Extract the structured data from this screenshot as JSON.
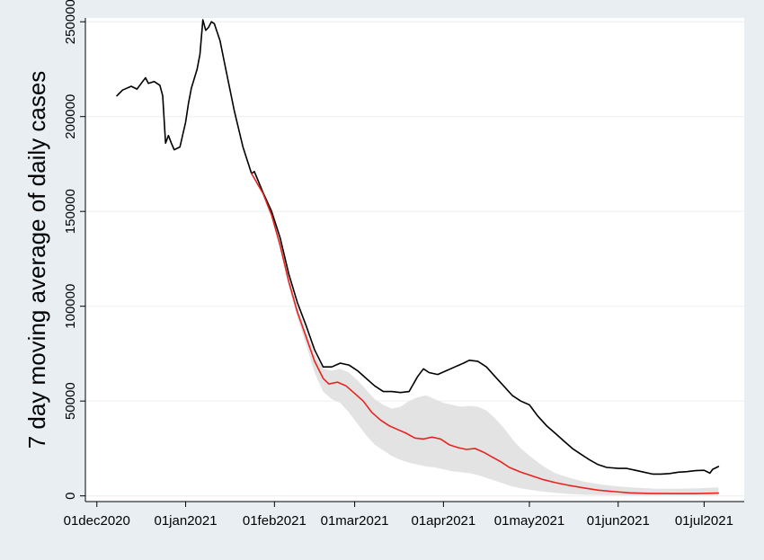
{
  "chart_data": {
    "type": "line",
    "title": "",
    "xlabel": "",
    "ylabel": "7 day moving average of daily cases",
    "x_ticks": [
      "01dec2020",
      "01jan2021",
      "01feb2021",
      "01mar2021",
      "01apr2021",
      "01may2021",
      "01jun2021",
      "01jul2021"
    ],
    "y_ticks": [
      "0",
      "50000",
      "100000",
      "150000",
      "200000",
      "250000"
    ],
    "y_tick_values": [
      0,
      50000,
      100000,
      150000,
      200000,
      250000
    ],
    "xlim": [
      "2020-11-27",
      "2021-07-15"
    ],
    "ylim": [
      -3000,
      252000
    ],
    "grid": true,
    "colors": {
      "observed": "#000000",
      "projected": "#e8231f",
      "band": "#e3e3e3",
      "background": "#e8eef2",
      "plot_bg": "#ffffff"
    },
    "series": [
      {
        "kind": "line",
        "color_key": "observed",
        "points": [
          [
            "2020-12-08",
            211000
          ],
          [
            "2020-12-10",
            214000
          ],
          [
            "2020-12-13",
            216000
          ],
          [
            "2020-12-15",
            214500
          ],
          [
            "2020-12-17",
            218500
          ],
          [
            "2020-12-18",
            220500
          ],
          [
            "2020-12-19",
            217500
          ],
          [
            "2020-12-21",
            218500
          ],
          [
            "2020-12-23",
            216500
          ],
          [
            "2020-12-24",
            211000
          ],
          [
            "2020-12-25",
            186000
          ],
          [
            "2020-12-26",
            190000
          ],
          [
            "2020-12-27",
            186000
          ],
          [
            "2020-12-28",
            182500
          ],
          [
            "2020-12-30",
            184000
          ],
          [
            "2021-01-01",
            197000
          ],
          [
            "2021-01-02",
            207000
          ],
          [
            "2021-01-03",
            215000
          ],
          [
            "2021-01-05",
            225000
          ],
          [
            "2021-01-06",
            233000
          ],
          [
            "2021-01-07",
            251000
          ],
          [
            "2021-01-08",
            245500
          ],
          [
            "2021-01-09",
            247000
          ],
          [
            "2021-01-10",
            250000
          ],
          [
            "2021-01-11",
            249000
          ],
          [
            "2021-01-13",
            240000
          ],
          [
            "2021-01-15",
            225000
          ],
          [
            "2021-01-18",
            203000
          ],
          [
            "2021-01-21",
            184000
          ],
          [
            "2021-01-24",
            170000
          ],
          [
            "2021-01-25",
            171000
          ],
          [
            "2021-01-28",
            160000
          ],
          [
            "2021-01-31",
            150000
          ],
          [
            "2021-02-03",
            136000
          ],
          [
            "2021-02-06",
            117000
          ],
          [
            "2021-02-09",
            102000
          ],
          [
            "2021-02-12",
            90000
          ],
          [
            "2021-02-15",
            77000
          ],
          [
            "2021-02-18",
            68000
          ],
          [
            "2021-02-21",
            68000
          ],
          [
            "2021-02-24",
            70000
          ],
          [
            "2021-02-27",
            69000
          ],
          [
            "2021-03-02",
            66000
          ],
          [
            "2021-03-05",
            62000
          ],
          [
            "2021-03-08",
            58000
          ],
          [
            "2021-03-11",
            55000
          ],
          [
            "2021-03-14",
            55000
          ],
          [
            "2021-03-17",
            54500
          ],
          [
            "2021-03-20",
            55000
          ],
          [
            "2021-03-23",
            63000
          ],
          [
            "2021-03-25",
            67000
          ],
          [
            "2021-03-27",
            65000
          ],
          [
            "2021-03-30",
            64000
          ],
          [
            "2021-04-02",
            66000
          ],
          [
            "2021-04-05",
            68000
          ],
          [
            "2021-04-08",
            70000
          ],
          [
            "2021-04-10",
            71500
          ],
          [
            "2021-04-13",
            71000
          ],
          [
            "2021-04-16",
            68000
          ],
          [
            "2021-04-19",
            63000
          ],
          [
            "2021-04-22",
            58000
          ],
          [
            "2021-04-25",
            53000
          ],
          [
            "2021-04-28",
            50000
          ],
          [
            "2021-05-01",
            48000
          ],
          [
            "2021-05-04",
            42000
          ],
          [
            "2021-05-07",
            37000
          ],
          [
            "2021-05-10",
            33000
          ],
          [
            "2021-05-13",
            29000
          ],
          [
            "2021-05-16",
            25000
          ],
          [
            "2021-05-19",
            22000
          ],
          [
            "2021-05-22",
            19000
          ],
          [
            "2021-05-25",
            16500
          ],
          [
            "2021-05-28",
            15000
          ],
          [
            "2021-06-01",
            14500
          ],
          [
            "2021-06-04",
            14500
          ],
          [
            "2021-06-07",
            13500
          ],
          [
            "2021-06-10",
            12500
          ],
          [
            "2021-06-13",
            11500
          ],
          [
            "2021-06-16",
            11500
          ],
          [
            "2021-06-19",
            11800
          ],
          [
            "2021-06-22",
            12500
          ],
          [
            "2021-06-25",
            12800
          ],
          [
            "2021-06-28",
            13300
          ],
          [
            "2021-07-01",
            13500
          ],
          [
            "2021-07-03",
            12000
          ],
          [
            "2021-07-04",
            14000
          ],
          [
            "2021-07-06",
            15500
          ]
        ]
      },
      {
        "kind": "line",
        "color_key": "projected",
        "points": [
          [
            "2021-01-24",
            170000
          ],
          [
            "2021-01-28",
            159500
          ],
          [
            "2021-01-31",
            148000
          ],
          [
            "2021-02-03",
            132000
          ],
          [
            "2021-02-06",
            113000
          ],
          [
            "2021-02-09",
            97000
          ],
          [
            "2021-02-12",
            84000
          ],
          [
            "2021-02-15",
            71000
          ],
          [
            "2021-02-18",
            62000
          ],
          [
            "2021-02-20",
            59000
          ],
          [
            "2021-02-23",
            60000
          ],
          [
            "2021-02-26",
            58000
          ],
          [
            "2021-03-01",
            54000
          ],
          [
            "2021-03-04",
            50000
          ],
          [
            "2021-03-07",
            44000
          ],
          [
            "2021-03-10",
            40000
          ],
          [
            "2021-03-13",
            37000
          ],
          [
            "2021-03-16",
            35000
          ],
          [
            "2021-03-19",
            33000
          ],
          [
            "2021-03-22",
            30500
          ],
          [
            "2021-03-25",
            30000
          ],
          [
            "2021-03-28",
            31000
          ],
          [
            "2021-03-31",
            30000
          ],
          [
            "2021-04-03",
            27000
          ],
          [
            "2021-04-06",
            25500
          ],
          [
            "2021-04-09",
            24500
          ],
          [
            "2021-04-12",
            25000
          ],
          [
            "2021-04-15",
            23000
          ],
          [
            "2021-04-18",
            20500
          ],
          [
            "2021-04-21",
            18000
          ],
          [
            "2021-04-24",
            15000
          ],
          [
            "2021-04-28",
            12500
          ],
          [
            "2021-05-02",
            10500
          ],
          [
            "2021-05-06",
            8500
          ],
          [
            "2021-05-10",
            7000
          ],
          [
            "2021-05-15",
            5500
          ],
          [
            "2021-05-20",
            4200
          ],
          [
            "2021-05-25",
            3000
          ],
          [
            "2021-05-31",
            2200
          ],
          [
            "2021-06-05",
            1600
          ],
          [
            "2021-06-12",
            1300
          ],
          [
            "2021-06-20",
            1200
          ],
          [
            "2021-06-28",
            1200
          ],
          [
            "2021-07-06",
            1500
          ]
        ]
      }
    ],
    "band": {
      "color_key": "band",
      "upper": [
        [
          "2021-01-24",
          170000
        ],
        [
          "2021-01-28",
          160000
        ],
        [
          "2021-01-31",
          149000
        ],
        [
          "2021-02-03",
          134000
        ],
        [
          "2021-02-06",
          115000
        ],
        [
          "2021-02-09",
          99000
        ],
        [
          "2021-02-12",
          87000
        ],
        [
          "2021-02-15",
          75000
        ],
        [
          "2021-02-18",
          67000
        ],
        [
          "2021-02-21",
          66000
        ],
        [
          "2021-02-24",
          67000
        ],
        [
          "2021-02-27",
          65000
        ],
        [
          "2021-03-02",
          61000
        ],
        [
          "2021-03-05",
          56000
        ],
        [
          "2021-03-08",
          51000
        ],
        [
          "2021-03-11",
          48000
        ],
        [
          "2021-03-14",
          46000
        ],
        [
          "2021-03-17",
          47000
        ],
        [
          "2021-03-20",
          50000
        ],
        [
          "2021-03-23",
          52000
        ],
        [
          "2021-03-26",
          53000
        ],
        [
          "2021-03-29",
          51000
        ],
        [
          "2021-04-01",
          49000
        ],
        [
          "2021-04-04",
          48000
        ],
        [
          "2021-04-07",
          47000
        ],
        [
          "2021-04-10",
          47500
        ],
        [
          "2021-04-13",
          47000
        ],
        [
          "2021-04-16",
          45000
        ],
        [
          "2021-04-19",
          41000
        ],
        [
          "2021-04-22",
          36000
        ],
        [
          "2021-04-25",
          30000
        ],
        [
          "2021-04-28",
          25000
        ],
        [
          "2021-05-02",
          20000
        ],
        [
          "2021-05-06",
          15500
        ],
        [
          "2021-05-10",
          12000
        ],
        [
          "2021-05-15",
          9500
        ],
        [
          "2021-05-20",
          7500
        ],
        [
          "2021-05-26",
          6000
        ],
        [
          "2021-06-01",
          5000
        ],
        [
          "2021-06-08",
          4200
        ],
        [
          "2021-06-15",
          3800
        ],
        [
          "2021-06-22",
          3800
        ],
        [
          "2021-06-29",
          4000
        ],
        [
          "2021-07-06",
          4500
        ]
      ],
      "lower": [
        [
          "2021-01-24",
          170000
        ],
        [
          "2021-01-28",
          159000
        ],
        [
          "2021-01-31",
          147000
        ],
        [
          "2021-02-03",
          130000
        ],
        [
          "2021-02-06",
          110000
        ],
        [
          "2021-02-09",
          94000
        ],
        [
          "2021-02-12",
          80000
        ],
        [
          "2021-02-15",
          65000
        ],
        [
          "2021-02-18",
          55000
        ],
        [
          "2021-02-21",
          51000
        ],
        [
          "2021-02-24",
          49000
        ],
        [
          "2021-02-27",
          44000
        ],
        [
          "2021-03-02",
          38000
        ],
        [
          "2021-03-05",
          32000
        ],
        [
          "2021-03-08",
          27000
        ],
        [
          "2021-03-11",
          24000
        ],
        [
          "2021-03-14",
          21000
        ],
        [
          "2021-03-17",
          19000
        ],
        [
          "2021-03-20",
          17500
        ],
        [
          "2021-03-23",
          16500
        ],
        [
          "2021-03-26",
          15500
        ],
        [
          "2021-03-29",
          15000
        ],
        [
          "2021-04-01",
          14000
        ],
        [
          "2021-04-04",
          13000
        ],
        [
          "2021-04-07",
          12500
        ],
        [
          "2021-04-10",
          12000
        ],
        [
          "2021-04-13",
          11000
        ],
        [
          "2021-04-16",
          9500
        ],
        [
          "2021-04-19",
          8000
        ],
        [
          "2021-04-22",
          6500
        ],
        [
          "2021-04-25",
          5000
        ],
        [
          "2021-04-28",
          4000
        ],
        [
          "2021-05-02",
          3000
        ],
        [
          "2021-05-06",
          2200
        ],
        [
          "2021-05-10",
          1600
        ],
        [
          "2021-05-15",
          1000
        ],
        [
          "2021-05-20",
          600
        ],
        [
          "2021-05-26",
          400
        ],
        [
          "2021-06-01",
          300
        ],
        [
          "2021-06-08",
          200
        ],
        [
          "2021-06-15",
          200
        ],
        [
          "2021-06-22",
          200
        ],
        [
          "2021-06-29",
          200
        ],
        [
          "2021-07-06",
          300
        ]
      ]
    }
  }
}
